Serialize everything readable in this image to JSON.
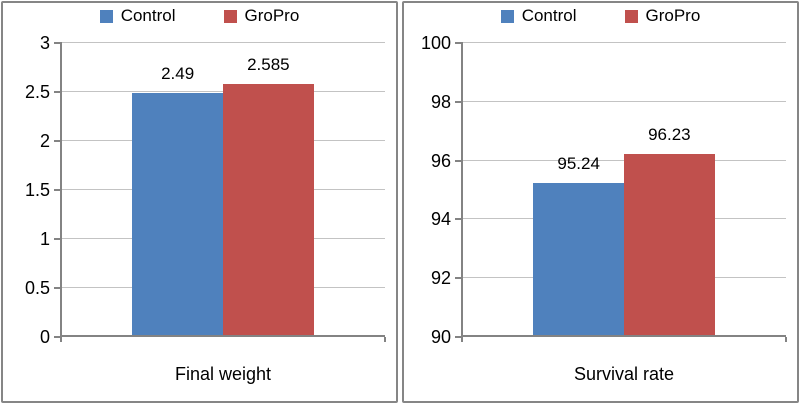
{
  "colors": {
    "control": "#4F81BD",
    "gropro": "#C0504D",
    "axis": "#838383",
    "gridline": "#C3C3C3",
    "panel_border": "#868686",
    "background": "#FFFFFF",
    "text": "#000000"
  },
  "legend": {
    "items": [
      "Control",
      "GroPro"
    ]
  },
  "chart_data": [
    {
      "type": "bar",
      "title": "",
      "categories": [
        "Final weight"
      ],
      "xlabel": "Final weight",
      "ylabel": "",
      "ylim": [
        0,
        3
      ],
      "yticks": [
        0,
        0.5,
        1,
        1.5,
        2,
        2.5,
        3
      ],
      "ytick_labels": [
        "0",
        "0.5",
        "1",
        "1.5",
        "2",
        "2.5",
        "3"
      ],
      "grid": true,
      "legend_position": "top",
      "series": [
        {
          "name": "Control",
          "color": "#4F81BD",
          "values": [
            2.49
          ],
          "data_labels": [
            "2.49"
          ]
        },
        {
          "name": "GroPro",
          "color": "#C0504D",
          "values": [
            2.585
          ],
          "data_labels": [
            "2.585"
          ]
        }
      ]
    },
    {
      "type": "bar",
      "title": "",
      "categories": [
        "Survival rate"
      ],
      "xlabel": "Survival rate",
      "ylabel": "",
      "ylim": [
        90,
        100
      ],
      "yticks": [
        90,
        92,
        94,
        96,
        98,
        100
      ],
      "ytick_labels": [
        "90",
        "92",
        "94",
        "96",
        "98",
        "100"
      ],
      "grid": true,
      "legend_position": "top",
      "series": [
        {
          "name": "Control",
          "color": "#4F81BD",
          "values": [
            95.24
          ],
          "data_labels": [
            "95.24"
          ]
        },
        {
          "name": "GroPro",
          "color": "#C0504D",
          "values": [
            96.23
          ],
          "data_labels": [
            "96.23"
          ]
        }
      ]
    }
  ]
}
